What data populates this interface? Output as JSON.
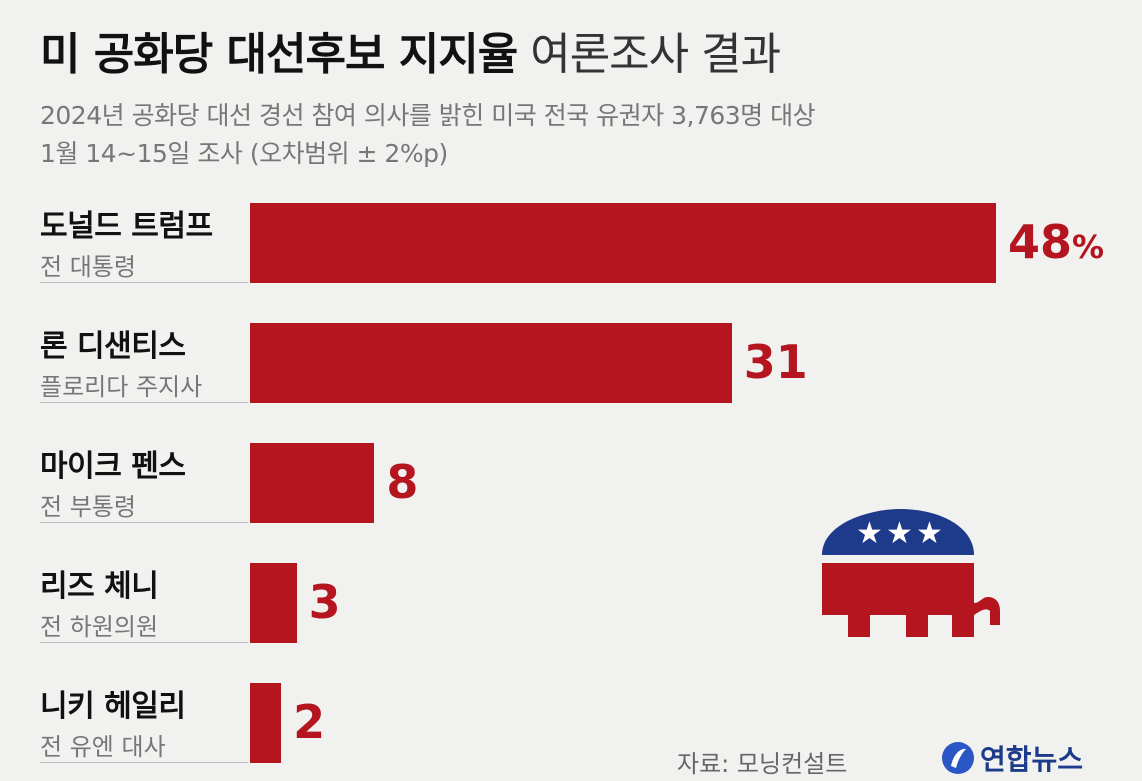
{
  "header": {
    "title_bold": "미 공화당 대선후보 지지율",
    "title_light": " 여론조사 결과",
    "subtitle_line1": "2024년 공화당 대선 경선 참여 의사를 밝힌 미국 전국 유권자 3,763명 대상",
    "subtitle_line2": "1월 14~15일 조사 (오차범위 ± 2%p)"
  },
  "chart_data": {
    "type": "bar",
    "orientation": "horizontal",
    "title": "미 공화당 대선후보 지지율 여론조사 결과",
    "categories": [
      "도널드 트럼프",
      "론 디샌티스",
      "마이크 펜스",
      "리즈 체니",
      "니키 헤일리"
    ],
    "roles": [
      "전 대통령",
      "플로리다 주지사",
      "전 부통령",
      "전 하원의원",
      "전 유엔 대사"
    ],
    "values": [
      48,
      31,
      8,
      3,
      2
    ],
    "value_labels": [
      "48",
      "31",
      "8",
      "3",
      "2"
    ],
    "unit": "%",
    "bar_color": "#b5151f",
    "xlim": [
      0,
      48
    ]
  },
  "footer": {
    "source": "자료: 모닝컨설트",
    "brand": "연합뉴스"
  },
  "colors": {
    "accent": "#b5151f",
    "elephant_blue": "#1e3a8a",
    "brand_blue": "#1e3a8a"
  },
  "icons": [
    "gop-elephant-icon",
    "yonhap-logo-icon"
  ]
}
